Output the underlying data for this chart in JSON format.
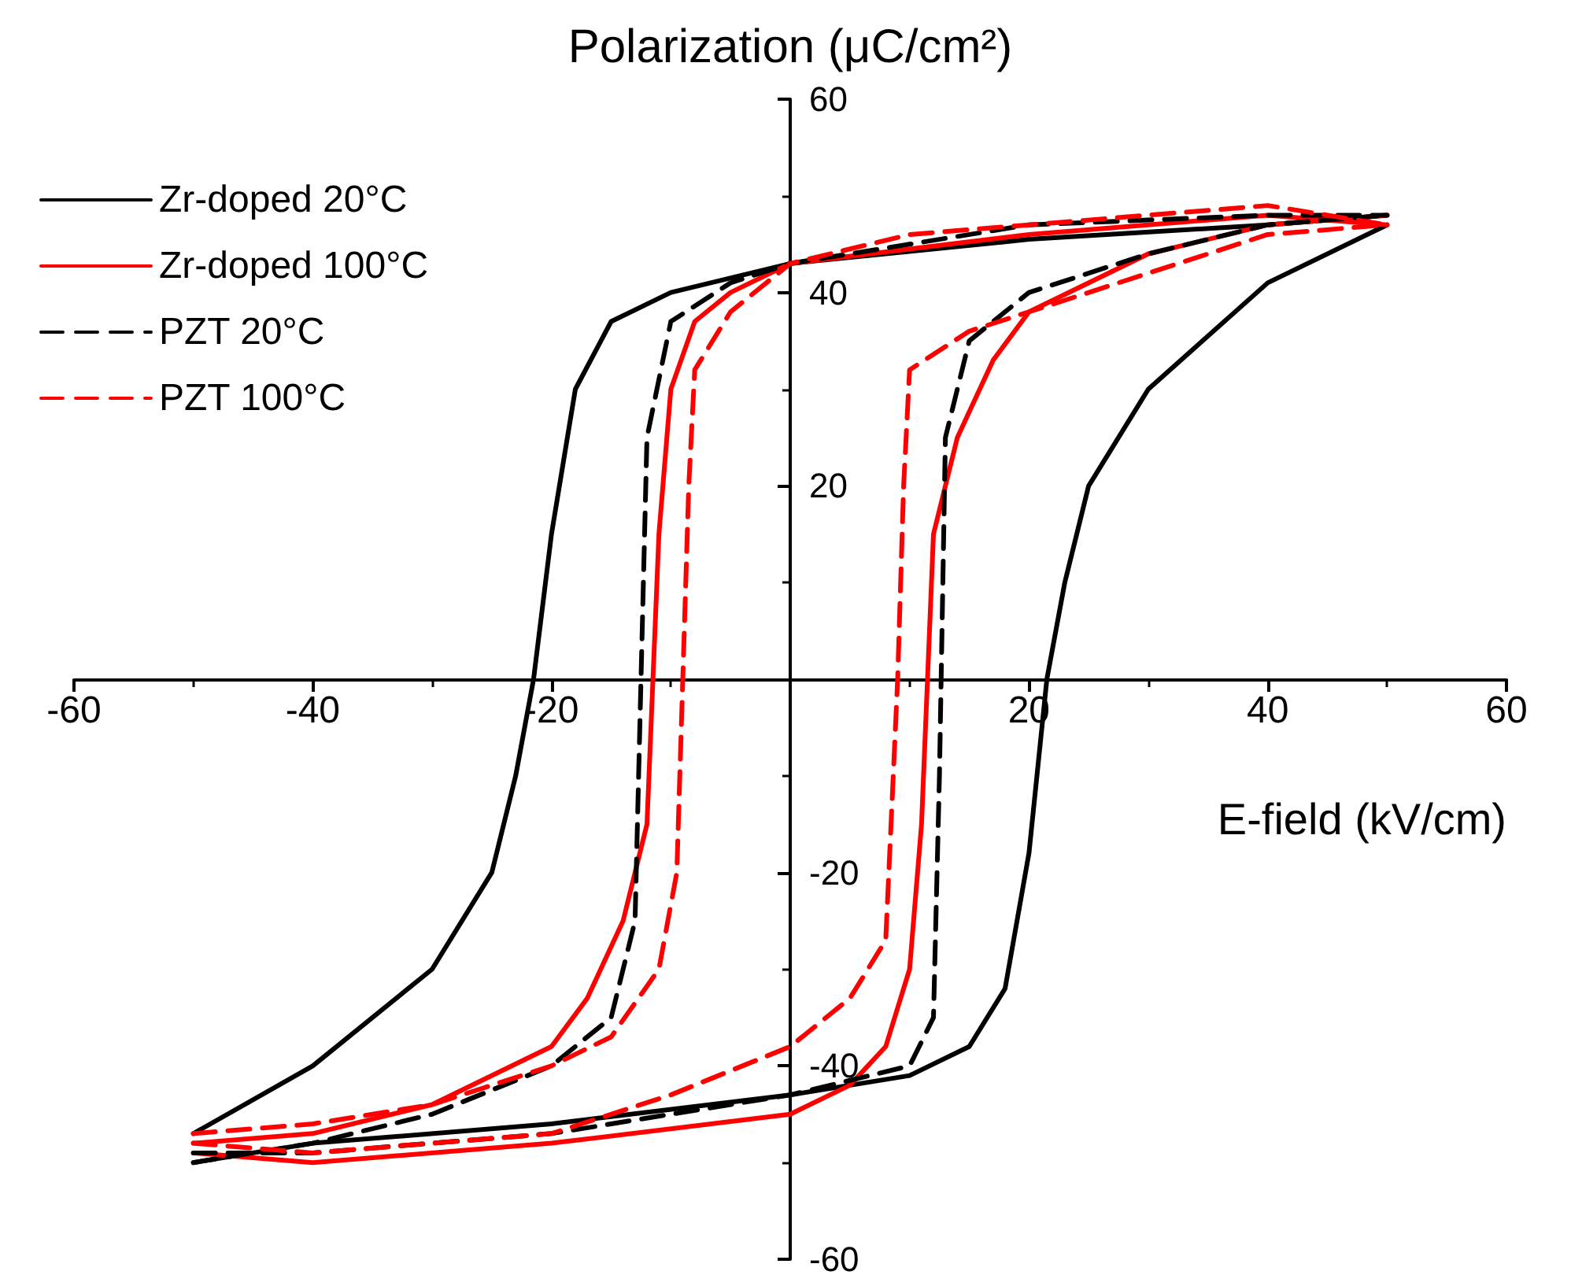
{
  "chart_data": {
    "type": "line",
    "xlabel": "E-field (kV/cm)",
    "ylabel": "Polarization (μC/cm²)",
    "xlim": [
      -60,
      60
    ],
    "ylim": [
      -60,
      60
    ],
    "xticks": [
      -60,
      -40,
      -20,
      {
        "value": 0,
        "label": null
      },
      20,
      40,
      60
    ],
    "yticks": [
      -60,
      -40,
      -20,
      {
        "value": 0,
        "label": null
      },
      20,
      40,
      60
    ],
    "legend": "top left",
    "marker": "none",
    "series": [
      {
        "name": "Zr-doped 20°C",
        "color": "#000000",
        "line_style": "solid",
        "x": [
          -50,
          -40,
          -30,
          -25,
          -23,
          -21.5,
          -20,
          -18,
          -15,
          -10,
          0,
          20,
          40,
          50
        ],
        "values": [
          -47,
          -40,
          -30,
          -20,
          -10,
          0,
          15,
          30,
          37,
          40,
          43,
          45.5,
          47,
          48
        ]
      },
      {
        "color": "#000000",
        "line_style": "solid",
        "x": [
          -50,
          -40,
          -20,
          0,
          10,
          15,
          18,
          20,
          21.5,
          23,
          25,
          30,
          40,
          50
        ],
        "values": [
          -50,
          -48,
          -46,
          -43,
          -41,
          -38,
          -32,
          -18,
          0,
          10,
          20,
          30,
          41,
          47
        ]
      },
      {
        "name": "Zr-doped 100°C",
        "color": "#ff0000",
        "line_style": "solid",
        "x": [
          -50,
          -40,
          -30,
          -20,
          -17,
          -14,
          -12,
          -11.5,
          -11,
          -10,
          -8,
          -5,
          0,
          20,
          40,
          50
        ],
        "values": [
          -48,
          -47,
          -44,
          -38,
          -33,
          -25,
          -15,
          0,
          15,
          30,
          37,
          40,
          43,
          46,
          48,
          47
        ]
      },
      {
        "color": "#ff0000",
        "line_style": "solid",
        "x": [
          -50,
          -40,
          -20,
          0,
          5,
          8,
          10,
          11,
          11.5,
          12,
          14,
          17,
          20,
          30,
          40,
          50
        ],
        "values": [
          -49,
          -50,
          -48,
          -45,
          -42,
          -38,
          -30,
          -15,
          0,
          15,
          25,
          33,
          38,
          44,
          47,
          48
        ]
      },
      {
        "name": "PZT 20°C",
        "color": "#000000",
        "line_style": "dashed",
        "x": [
          -50,
          -40,
          -30,
          -20,
          -15,
          -13,
          -12.5,
          -12,
          -10,
          -5,
          0,
          10,
          20,
          40,
          50
        ],
        "values": [
          -50,
          -48,
          -45,
          -40,
          -35,
          -25,
          0,
          25,
          37,
          41,
          43,
          45,
          47,
          48,
          48
        ]
      },
      {
        "color": "#000000",
        "line_style": "dashed",
        "x": [
          -50,
          -40,
          -20,
          0,
          10,
          12,
          12.5,
          13,
          15,
          20,
          30,
          40,
          50
        ],
        "values": [
          -49,
          -49,
          -47,
          -43,
          -40,
          -35,
          -10,
          25,
          35,
          40,
          44,
          47,
          48
        ]
      },
      {
        "name": "PZT 100°C",
        "color": "#ff0000",
        "line_style": "dashed",
        "x": [
          -50,
          -40,
          -30,
          -20,
          -15,
          -11,
          -9.5,
          -9,
          -8.5,
          -8,
          -5,
          0,
          10,
          20,
          40,
          50
        ],
        "values": [
          -47,
          -46,
          -44,
          -40,
          -37,
          -30,
          -20,
          0,
          20,
          32,
          38,
          43,
          46,
          47,
          49,
          47
        ]
      },
      {
        "color": "#ff0000",
        "line_style": "dashed",
        "x": [
          -50,
          -40,
          -20,
          -10,
          0,
          5,
          8,
          9,
          9.5,
          10,
          15,
          20,
          30,
          40,
          50
        ],
        "values": [
          -48,
          -49,
          -47,
          -43,
          -38,
          -33,
          -27,
          0,
          20,
          32,
          36,
          38,
          42,
          46,
          47
        ]
      }
    ]
  }
}
